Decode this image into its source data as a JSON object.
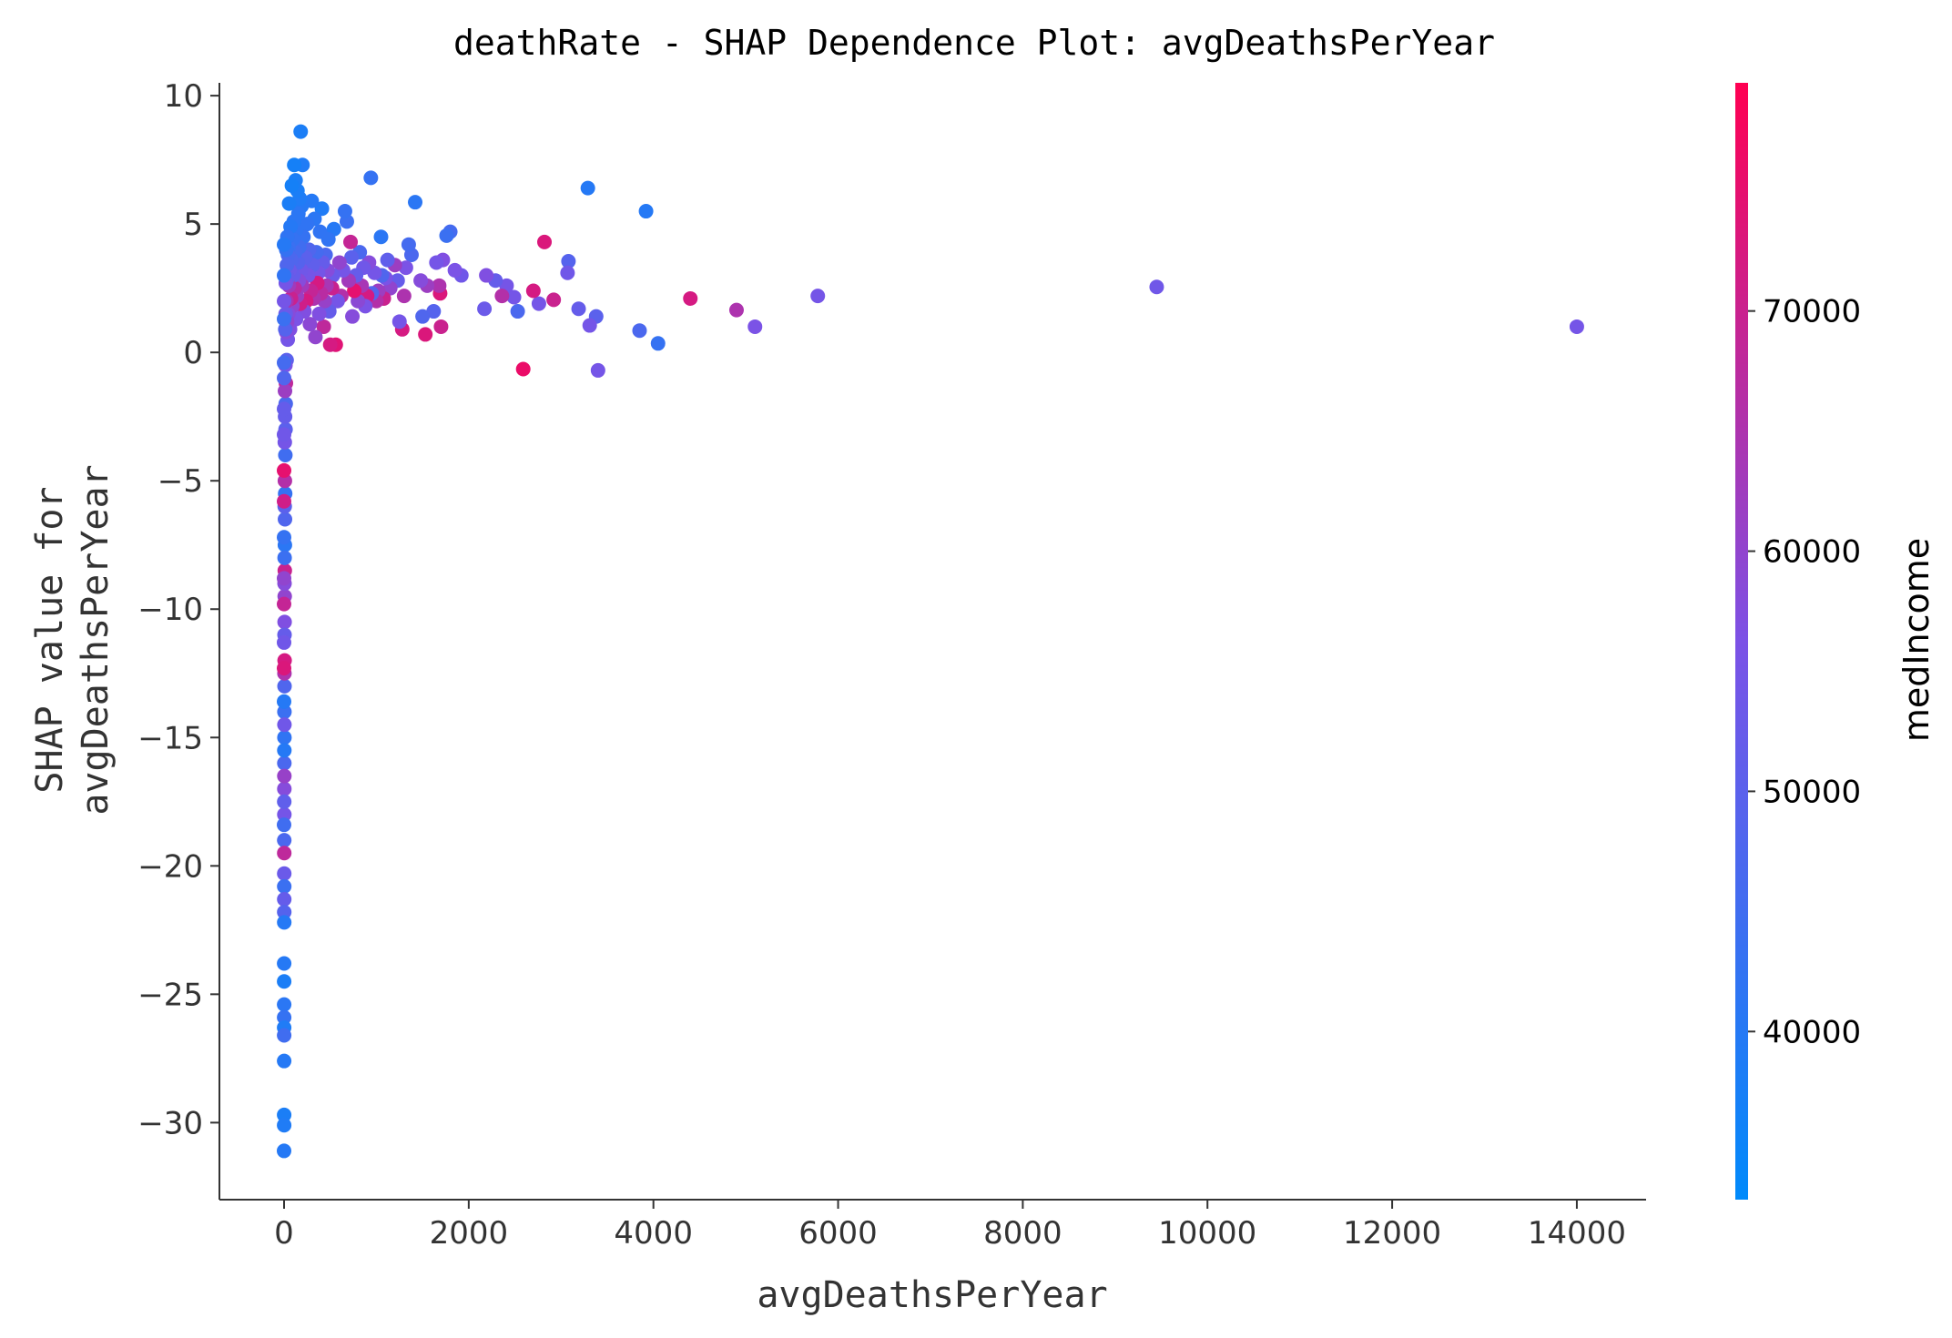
{
  "chart_data": {
    "type": "scatter",
    "title": "deathRate - SHAP Dependence Plot: avgDeathsPerYear",
    "xlabel": "avgDeathsPerYear",
    "ylabel_lines": [
      "SHAP value for",
      "avgDeathsPerYear"
    ],
    "colorbar_label": "medIncome",
    "xlim": [
      -700,
      14750
    ],
    "ylim": [
      -33,
      10.5
    ],
    "xticks": [
      0,
      2000,
      4000,
      6000,
      8000,
      10000,
      12000,
      14000
    ],
    "yticks": [
      10,
      5,
      0,
      -5,
      -10,
      -15,
      -20,
      -25,
      -30
    ],
    "xtick_labels": [
      "0",
      "2000",
      "4000",
      "6000",
      "8000",
      "10000",
      "12000",
      "14000"
    ],
    "ytick_labels": [
      "10",
      "5",
      "0",
      "−5",
      "−10",
      "−15",
      "−20",
      "−25",
      "−30"
    ],
    "colorbar": {
      "range": [
        33000,
        79500
      ],
      "ticks": [
        70000,
        60000,
        50000,
        40000
      ],
      "tick_labels": [
        "70000",
        "60000",
        "50000",
        "40000"
      ],
      "color_low": "#008afb",
      "color_mid": "#7c52e6",
      "color_high": "#ff0052"
    },
    "grid": false,
    "legend": "colorbar right",
    "points": [
      [
        14000,
        1.0,
        55000
      ],
      [
        9450,
        2.55,
        54000
      ],
      [
        5780,
        2.2,
        55000
      ],
      [
        5100,
        1.0,
        56000
      ],
      [
        4900,
        1.65,
        65000
      ],
      [
        4400,
        2.1,
        72000
      ],
      [
        4050,
        0.35,
        43000
      ],
      [
        3920,
        5.5,
        40000
      ],
      [
        3850,
        0.85,
        47000
      ],
      [
        3400,
        -0.7,
        55000
      ],
      [
        3380,
        1.4,
        50000
      ],
      [
        3310,
        1.05,
        55000
      ],
      [
        3290,
        6.4,
        40000
      ],
      [
        3190,
        1.7,
        52000
      ],
      [
        3080,
        3.55,
        49000
      ],
      [
        3070,
        3.1,
        54000
      ],
      [
        2920,
        2.05,
        70000
      ],
      [
        2820,
        4.3,
        73000
      ],
      [
        2760,
        1.9,
        55000
      ],
      [
        2700,
        2.4,
        72000
      ],
      [
        2590,
        -0.65,
        76000
      ],
      [
        2530,
        1.6,
        47000
      ],
      [
        2490,
        2.15,
        55000
      ],
      [
        2410,
        2.6,
        55000
      ],
      [
        2360,
        2.2,
        66000
      ],
      [
        2290,
        2.8,
        52000
      ],
      [
        2190,
        3.0,
        57000
      ],
      [
        2170,
        1.7,
        53000
      ],
      [
        1920,
        3.0,
        54000
      ],
      [
        1850,
        3.2,
        56000
      ],
      [
        1800,
        4.7,
        46000
      ],
      [
        1760,
        4.55,
        44000
      ],
      [
        1720,
        3.6,
        57000
      ],
      [
        1700,
        1.0,
        70000
      ],
      [
        1690,
        2.3,
        73000
      ],
      [
        1680,
        2.6,
        65000
      ],
      [
        1650,
        3.5,
        55000
      ],
      [
        1620,
        1.6,
        49000
      ],
      [
        1550,
        2.6,
        62000
      ],
      [
        1530,
        0.7,
        73000
      ],
      [
        1500,
        1.4,
        48000
      ],
      [
        1480,
        2.8,
        58000
      ],
      [
        1420,
        5.85,
        41000
      ],
      [
        1380,
        3.8,
        47000
      ],
      [
        1350,
        4.2,
        46000
      ],
      [
        1320,
        3.3,
        56000
      ],
      [
        1300,
        2.2,
        65000
      ],
      [
        1280,
        0.9,
        72000
      ],
      [
        1250,
        1.2,
        55000
      ],
      [
        1230,
        2.8,
        52000
      ],
      [
        1200,
        3.4,
        62000
      ],
      [
        1150,
        2.5,
        60000
      ],
      [
        1120,
        3.6,
        51000
      ],
      [
        1100,
        2.9,
        56000
      ],
      [
        1080,
        2.1,
        70000
      ],
      [
        1060,
        3.0,
        48000
      ],
      [
        1050,
        4.5,
        41000
      ],
      [
        1020,
        2.4,
        62000
      ],
      [
        1000,
        2.0,
        66000
      ],
      [
        980,
        3.1,
        55000
      ],
      [
        950,
        2.3,
        49000
      ],
      [
        940,
        6.8,
        43000
      ],
      [
        920,
        3.5,
        58000
      ],
      [
        900,
        2.2,
        72000
      ],
      [
        880,
        1.8,
        56000
      ],
      [
        860,
        3.3,
        54000
      ],
      [
        840,
        2.6,
        64000
      ],
      [
        820,
        3.9,
        47000
      ],
      [
        800,
        2.0,
        59000
      ],
      [
        780,
        3.0,
        52000
      ],
      [
        760,
        2.4,
        75000
      ],
      [
        740,
        1.4,
        58000
      ],
      [
        730,
        3.7,
        50000
      ],
      [
        720,
        4.3,
        69000
      ],
      [
        700,
        2.8,
        63000
      ],
      [
        680,
        5.1,
        44000
      ],
      [
        660,
        5.5,
        43000
      ],
      [
        640,
        3.2,
        55000
      ],
      [
        620,
        2.2,
        66000
      ],
      [
        600,
        3.5,
        60000
      ],
      [
        580,
        2.0,
        55000
      ],
      [
        560,
        0.3,
        74000
      ],
      [
        540,
        4.8,
        40000
      ],
      [
        530,
        3.0,
        53000
      ],
      [
        520,
        2.5,
        70000
      ],
      [
        500,
        0.3,
        72000
      ],
      [
        490,
        1.6,
        52000
      ],
      [
        480,
        4.4,
        42000
      ],
      [
        470,
        3.2,
        58000
      ],
      [
        460,
        2.6,
        64000
      ],
      [
        450,
        3.8,
        47000
      ],
      [
        440,
        2.0,
        61000
      ],
      [
        430,
        1.0,
        68000
      ],
      [
        420,
        3.5,
        52000
      ],
      [
        410,
        5.6,
        39000
      ],
      [
        400,
        2.3,
        67000
      ],
      [
        390,
        4.7,
        42000
      ],
      [
        380,
        1.5,
        57000
      ],
      [
        370,
        3.1,
        55000
      ],
      [
        360,
        2.7,
        72000
      ],
      [
        350,
        3.9,
        46000
      ],
      [
        340,
        0.6,
        60000
      ],
      [
        330,
        5.2,
        41000
      ],
      [
        320,
        2.1,
        65000
      ],
      [
        310,
        3.4,
        51000
      ],
      [
        300,
        5.9,
        40000
      ],
      [
        290,
        2.4,
        69000
      ],
      [
        280,
        1.1,
        59000
      ],
      [
        270,
        4.0,
        48000
      ],
      [
        260,
        3.0,
        55000
      ],
      [
        250,
        5.0,
        42000
      ],
      [
        240,
        2.0,
        72000
      ],
      [
        230,
        3.7,
        50000
      ],
      [
        220,
        1.6,
        57000
      ],
      [
        210,
        4.5,
        43000
      ],
      [
        200,
        7.3,
        39000
      ],
      [
        195,
        2.6,
        63000
      ],
      [
        190,
        5.7,
        40000
      ],
      [
        185,
        3.2,
        54000
      ],
      [
        180,
        8.6,
        38000
      ],
      [
        175,
        1.9,
        71000
      ],
      [
        170,
        6.0,
        39000
      ],
      [
        165,
        4.1,
        45000
      ],
      [
        160,
        2.8,
        58000
      ],
      [
        155,
        5.4,
        41000
      ],
      [
        150,
        3.5,
        49000
      ],
      [
        145,
        6.3,
        38000
      ],
      [
        140,
        2.2,
        62000
      ],
      [
        135,
        4.8,
        42000
      ],
      [
        130,
        1.3,
        56000
      ],
      [
        125,
        6.7,
        38000
      ],
      [
        120,
        3.9,
        46000
      ],
      [
        115,
        2.5,
        67000
      ],
      [
        110,
        7.3,
        37000
      ],
      [
        105,
        5.1,
        41000
      ],
      [
        100,
        3.0,
        52000
      ],
      [
        95,
        4.4,
        43000
      ],
      [
        90,
        1.8,
        60000
      ],
      [
        85,
        6.5,
        37000
      ],
      [
        80,
        3.6,
        48000
      ],
      [
        75,
        2.1,
        70000
      ],
      [
        70,
        4.9,
        40000
      ],
      [
        65,
        0.9,
        57000
      ],
      [
        60,
        3.2,
        53000
      ],
      [
        55,
        5.8,
        38000
      ],
      [
        52,
        2.6,
        63000
      ],
      [
        48,
        4.1,
        44000
      ],
      [
        45,
        1.5,
        58000
      ],
      [
        42,
        3.8,
        47000
      ],
      [
        40,
        0.5,
        55000
      ],
      [
        38,
        2.9,
        52000
      ],
      [
        35,
        4.5,
        42000
      ],
      [
        33,
        1.2,
        60000
      ],
      [
        30,
        3.4,
        48000
      ],
      [
        28,
        -0.3,
        50000
      ],
      [
        26,
        2.0,
        65000
      ],
      [
        24,
        4.0,
        43000
      ],
      [
        22,
        0.8,
        58000
      ],
      [
        20,
        -1.2,
        68000
      ],
      [
        19,
        2.7,
        55000
      ],
      [
        18,
        -2.0,
        47000
      ],
      [
        17,
        1.5,
        53000
      ],
      [
        16,
        -3.0,
        50000
      ],
      [
        15,
        -0.5,
        56000
      ],
      [
        14,
        -4.0,
        45000
      ],
      [
        13,
        0.9,
        49000
      ],
      [
        12,
        -5.5,
        43000
      ],
      [
        11,
        -2.5,
        52000
      ],
      [
        10,
        -6.5,
        48000
      ],
      [
        10,
        -1.5,
        62000
      ],
      [
        9,
        -7.5,
        41000
      ],
      [
        9,
        -5.0,
        66000
      ],
      [
        8,
        -8.5,
        70000
      ],
      [
        8,
        -3.5,
        55000
      ],
      [
        7,
        -9.5,
        60000
      ],
      [
        7,
        -6.0,
        50000
      ],
      [
        6,
        -10.5,
        57000
      ],
      [
        6,
        -8.0,
        44000
      ],
      [
        6,
        -12.0,
        72000
      ],
      [
        5,
        -11.0,
        52000
      ],
      [
        5,
        -13.0,
        48000
      ],
      [
        5,
        -9.0,
        58000
      ],
      [
        4,
        -14.0,
        44000
      ],
      [
        4,
        -12.5,
        65000
      ],
      [
        4,
        -15.0,
        42000
      ],
      [
        4,
        -14.5,
        54000
      ],
      [
        3,
        -16.0,
        47000
      ],
      [
        3,
        -15.5,
        40000
      ],
      [
        3,
        -17.0,
        58000
      ],
      [
        3,
        -16.5,
        61000
      ],
      [
        3,
        -18.0,
        55000
      ],
      [
        2,
        -17.5,
        51000
      ],
      [
        2,
        -19.0,
        47000
      ],
      [
        2,
        -19.5,
        68000
      ],
      [
        2,
        -20.3,
        53000
      ],
      [
        2,
        -20.8,
        44000
      ],
      [
        2,
        -21.3,
        52000
      ],
      [
        2,
        -21.8,
        49000
      ],
      [
        2,
        -22.2,
        40000
      ],
      [
        1,
        -23.8,
        40000
      ],
      [
        1,
        -24.5,
        38000
      ],
      [
        1,
        -25.4,
        41000
      ],
      [
        1,
        -25.9,
        43000
      ],
      [
        1,
        -26.3,
        39000
      ],
      [
        1,
        -26.6,
        45000
      ],
      [
        1,
        -27.6,
        40000
      ],
      [
        1,
        -29.7,
        38000
      ],
      [
        1,
        -30.1,
        39000
      ],
      [
        0,
        -31.1,
        40000
      ],
      [
        0,
        -12.3,
        73000
      ],
      [
        0,
        -9.8,
        69000
      ],
      [
        0,
        -5.8,
        71000
      ],
      [
        0,
        -4.6,
        75000
      ],
      [
        0,
        -3.2,
        54000
      ],
      [
        0,
        -2.2,
        52000
      ],
      [
        0,
        -1.0,
        48000
      ],
      [
        0,
        -0.4,
        46000
      ],
      [
        0,
        1.3,
        44000
      ],
      [
        0,
        2.0,
        55000
      ],
      [
        0,
        3.0,
        42000
      ],
      [
        0,
        4.2,
        40000
      ],
      [
        0,
        -7.2,
        43000
      ],
      [
        0,
        -8.8,
        60000
      ],
      [
        0,
        -11.3,
        54000
      ],
      [
        0,
        -13.6,
        40000
      ],
      [
        0,
        -18.4,
        45000
      ]
    ]
  }
}
